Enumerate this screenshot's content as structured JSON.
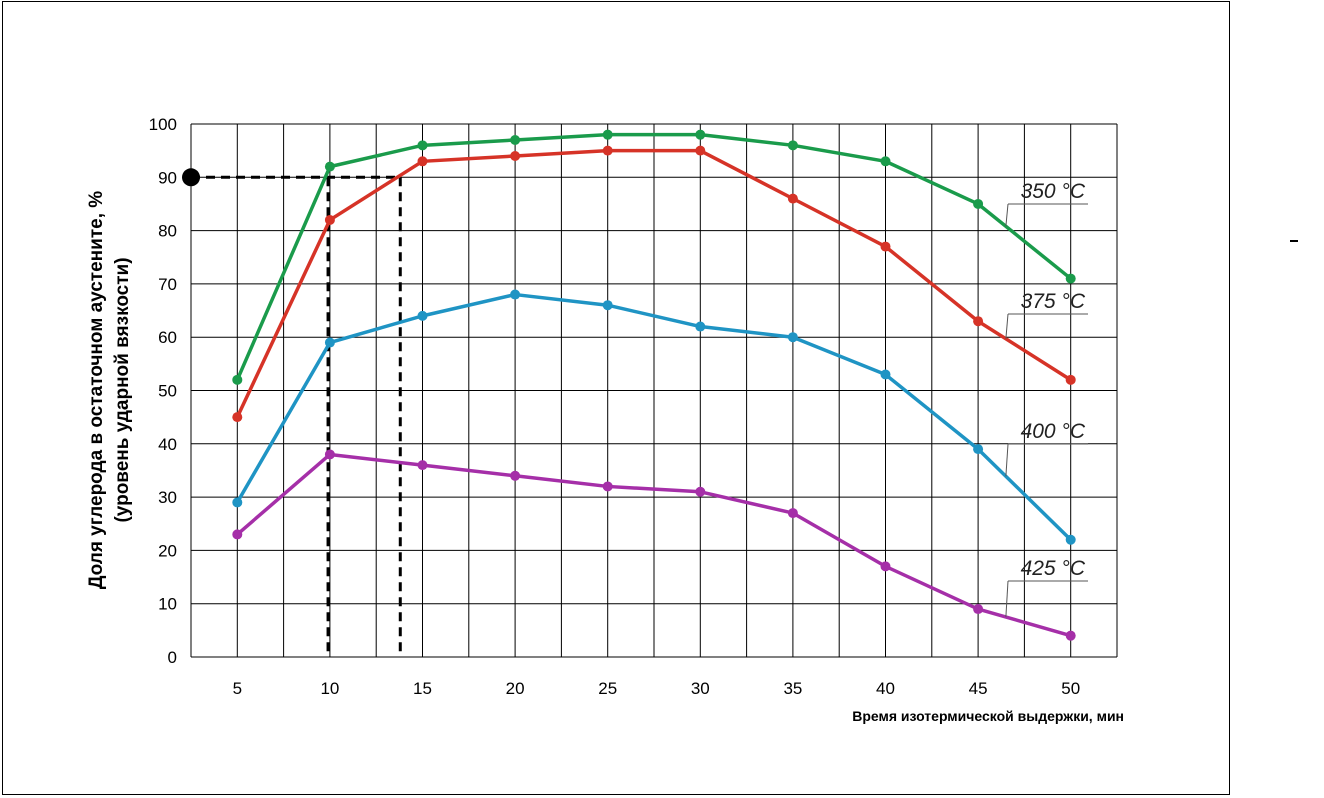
{
  "chart_data": {
    "type": "line",
    "xlabel": "Время изотермической выдержки, мин",
    "ylabel_lines": [
      "Доля углерода в остаточном аустените, %",
      "(уровень ударной вязкости)"
    ],
    "x": [
      5,
      10,
      15,
      20,
      25,
      30,
      35,
      40,
      45,
      50
    ],
    "xlim": [
      2.5,
      52.5
    ],
    "ylim": [
      0,
      100
    ],
    "yticks": [
      0,
      10,
      20,
      30,
      40,
      50,
      60,
      70,
      80,
      90,
      100
    ],
    "grid": true,
    "series": [
      {
        "name": "350 °C",
        "color": "#1a9b4b",
        "values": [
          52,
          92,
          96,
          97,
          98,
          98,
          96,
          93,
          85,
          71
        ]
      },
      {
        "name": "375 °C",
        "color": "#d63327",
        "values": [
          45,
          82,
          93,
          94,
          95,
          95,
          86,
          77,
          63,
          52
        ]
      },
      {
        "name": "400 °C",
        "color": "#1f94c4",
        "values": [
          29,
          59,
          64,
          68,
          66,
          62,
          60,
          53,
          39,
          22
        ]
      },
      {
        "name": "425 °C",
        "color": "#a52fa8",
        "values": [
          23,
          38,
          36,
          34,
          32,
          31,
          27,
          17,
          9,
          4
        ]
      }
    ],
    "annotation": {
      "marker_y": 90,
      "dashed_from_x": 2.5,
      "drop_lines_x": [
        9.9,
        13.8
      ]
    }
  }
}
